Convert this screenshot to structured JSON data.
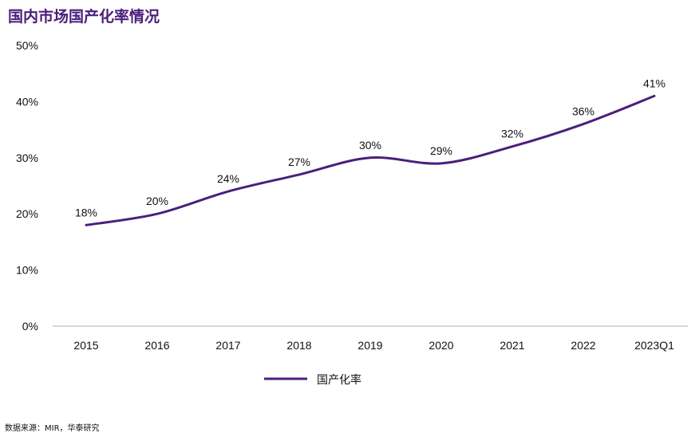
{
  "title": "国内市场国产化率情况",
  "source": "数据来源：MIR，华泰研究",
  "colors": {
    "line": "#4b1f7a",
    "title": "#4b1f7a",
    "axis": "#bfbfbf",
    "text": "#111111"
  },
  "chart_data": {
    "type": "line",
    "categories": [
      "2015",
      "2016",
      "2017",
      "2018",
      "2019",
      "2020",
      "2021",
      "2022",
      "2023Q1"
    ],
    "series": [
      {
        "name": "国产化率",
        "values": [
          18,
          20,
          24,
          27,
          30,
          29,
          32,
          36,
          41
        ]
      }
    ],
    "data_labels": [
      "18%",
      "20%",
      "24%",
      "27%",
      "30%",
      "29%",
      "32%",
      "36%",
      "41%"
    ],
    "y_ticks": [
      "0%",
      "10%",
      "20%",
      "30%",
      "40%",
      "50%"
    ],
    "ylim": [
      0,
      50
    ],
    "grid": false,
    "legend_position": "bottom",
    "smooth": true
  }
}
